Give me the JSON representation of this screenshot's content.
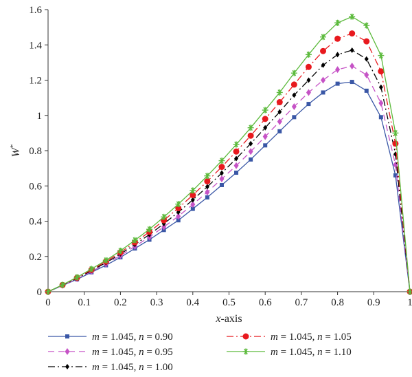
{
  "chart_data": {
    "type": "line",
    "xlabel_var": "x",
    "xlabel_rest": "-axis",
    "ylabel_main": "W",
    "ylabel_sup": "*",
    "xlim": [
      0,
      1
    ],
    "ylim": [
      0,
      1.6
    ],
    "xticks": [
      "0",
      "0.1",
      "0.2",
      "0.3",
      "0.4",
      "0.5",
      "0.6",
      "0.7",
      "0.8",
      "0.9",
      "1"
    ],
    "yticks": [
      "0",
      "0.2",
      "0.4",
      "0.6",
      "0.8",
      "1",
      "1.2",
      "1.4",
      "1.6"
    ],
    "grid": false,
    "legend_position": "bottom",
    "x": [
      0,
      0.04,
      0.08,
      0.12,
      0.16,
      0.2,
      0.24,
      0.28,
      0.32,
      0.36,
      0.4,
      0.44,
      0.48,
      0.52,
      0.56,
      0.6,
      0.64,
      0.68,
      0.72,
      0.76,
      0.8,
      0.84,
      0.88,
      0.92,
      0.96,
      1.0
    ],
    "series": [
      {
        "m_value": "1.045",
        "n_value": "0.90",
        "color": "#3a57a6",
        "dash": "",
        "marker": "square",
        "values": [
          0,
          0.035,
          0.07,
          0.11,
          0.15,
          0.195,
          0.245,
          0.295,
          0.35,
          0.405,
          0.47,
          0.535,
          0.605,
          0.675,
          0.75,
          0.83,
          0.91,
          0.99,
          1.065,
          1.13,
          1.18,
          1.19,
          1.14,
          0.99,
          0.66,
          0
        ]
      },
      {
        "m_value": "1.045",
        "n_value": "0.95",
        "color": "#c653c6",
        "dash": "9,6",
        "marker": "diamond",
        "values": [
          0,
          0.036,
          0.073,
          0.115,
          0.157,
          0.205,
          0.257,
          0.31,
          0.368,
          0.428,
          0.495,
          0.565,
          0.64,
          0.715,
          0.795,
          0.88,
          0.965,
          1.05,
          1.13,
          1.2,
          1.26,
          1.28,
          1.23,
          1.07,
          0.72,
          0
        ]
      },
      {
        "m_value": "1.045",
        "n_value": "1.00",
        "color": "#000000",
        "dash": "10,4,2,4",
        "marker": "diamond-small",
        "values": [
          0,
          0.037,
          0.076,
          0.12,
          0.164,
          0.214,
          0.268,
          0.324,
          0.386,
          0.451,
          0.521,
          0.595,
          0.673,
          0.755,
          0.84,
          0.93,
          1.02,
          1.115,
          1.2,
          1.285,
          1.345,
          1.37,
          1.32,
          1.16,
          0.78,
          0
        ]
      },
      {
        "m_value": "1.045",
        "n_value": "1.05",
        "color": "#e8191e",
        "dash": "10,4,2,4",
        "marker": "circle",
        "values": [
          0,
          0.038,
          0.079,
          0.124,
          0.171,
          0.223,
          0.28,
          0.339,
          0.405,
          0.474,
          0.548,
          0.626,
          0.708,
          0.795,
          0.885,
          0.98,
          1.075,
          1.175,
          1.275,
          1.365,
          1.435,
          1.465,
          1.42,
          1.25,
          0.84,
          0
        ]
      },
      {
        "m_value": "1.045",
        "n_value": "1.10",
        "color": "#5cba3c",
        "dash": "",
        "marker": "star",
        "values": [
          0,
          0.039,
          0.082,
          0.129,
          0.178,
          0.232,
          0.292,
          0.354,
          0.424,
          0.497,
          0.574,
          0.657,
          0.743,
          0.835,
          0.93,
          1.03,
          1.13,
          1.24,
          1.345,
          1.445,
          1.525,
          1.56,
          1.51,
          1.34,
          0.9,
          0
        ]
      }
    ]
  }
}
